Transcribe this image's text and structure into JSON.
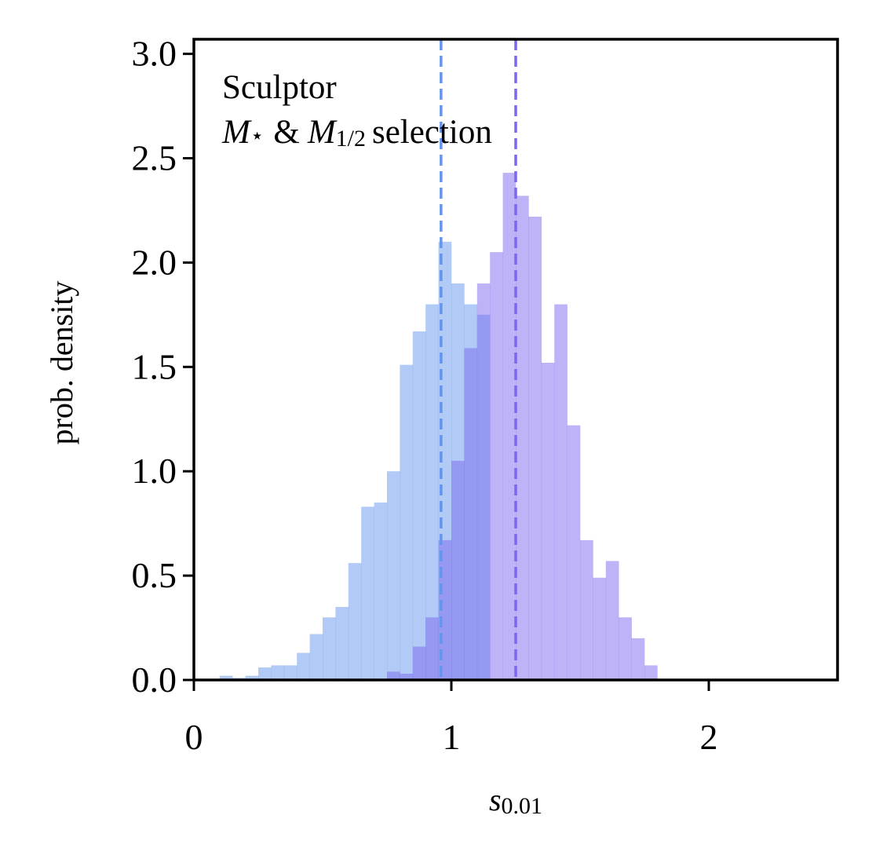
{
  "chart_data": {
    "type": "histogram",
    "annotation": {
      "line1": "Sculptor",
      "line2_M": "M",
      "line2_star": "⋆",
      "line2_amp": "&",
      "line2_M2": "M",
      "line2_sub": "1/2",
      "line2_rest": "selection"
    },
    "xlabel": {
      "var": "s",
      "sub": "0.01"
    },
    "ylabel": "prob. density",
    "xlim": [
      0,
      2.5
    ],
    "ylim": [
      0,
      3.07
    ],
    "x_ticks": [
      {
        "value": 0,
        "label": "0"
      },
      {
        "value": 1,
        "label": "1"
      },
      {
        "value": 2,
        "label": "2"
      }
    ],
    "y_ticks": [
      {
        "value": 0.0,
        "label": "0.0"
      },
      {
        "value": 0.5,
        "label": "0.5"
      },
      {
        "value": 1.0,
        "label": "1.0"
      },
      {
        "value": 1.5,
        "label": "1.5"
      },
      {
        "value": 2.0,
        "label": "2.0"
      },
      {
        "value": 2.5,
        "label": "2.5"
      },
      {
        "value": 3.0,
        "label": "3.0"
      }
    ],
    "series": [
      {
        "color": "#6495ed",
        "alpha": 0.5,
        "bin_width": 0.05,
        "bins": [
          [
            0.05,
            0.0
          ],
          [
            0.1,
            0.02
          ],
          [
            0.15,
            0.01
          ],
          [
            0.2,
            0.02
          ],
          [
            0.25,
            0.06
          ],
          [
            0.3,
            0.07
          ],
          [
            0.35,
            0.07
          ],
          [
            0.4,
            0.13
          ],
          [
            0.45,
            0.22
          ],
          [
            0.5,
            0.3
          ],
          [
            0.55,
            0.35
          ],
          [
            0.6,
            0.56
          ],
          [
            0.65,
            0.83
          ],
          [
            0.7,
            0.85
          ],
          [
            0.75,
            1.0
          ],
          [
            0.8,
            1.51
          ],
          [
            0.85,
            1.67
          ],
          [
            0.9,
            1.8
          ],
          [
            0.95,
            2.1
          ],
          [
            1.0,
            1.9
          ],
          [
            1.05,
            1.8
          ],
          [
            1.1,
            1.75
          ],
          [
            1.15,
            0.0
          ]
        ],
        "median": 0.96
      },
      {
        "color": "#7b68ee",
        "alpha": 0.5,
        "bin_width": 0.05,
        "bins": [
          [
            0.75,
            0.04
          ],
          [
            0.8,
            0.03
          ],
          [
            0.85,
            0.16
          ],
          [
            0.9,
            0.3
          ],
          [
            0.95,
            0.67
          ],
          [
            1.0,
            1.05
          ],
          [
            1.05,
            1.59
          ],
          [
            1.1,
            1.9
          ],
          [
            1.15,
            2.05
          ],
          [
            1.2,
            2.43
          ],
          [
            1.25,
            2.32
          ],
          [
            1.3,
            2.22
          ],
          [
            1.35,
            1.52
          ],
          [
            1.4,
            1.8
          ],
          [
            1.45,
            1.22
          ],
          [
            1.5,
            0.67
          ],
          [
            1.55,
            0.49
          ],
          [
            1.6,
            0.57
          ],
          [
            1.65,
            0.3
          ],
          [
            1.7,
            0.2
          ],
          [
            1.75,
            0.07
          ],
          [
            1.8,
            0.0
          ]
        ],
        "median": 1.25
      }
    ]
  }
}
